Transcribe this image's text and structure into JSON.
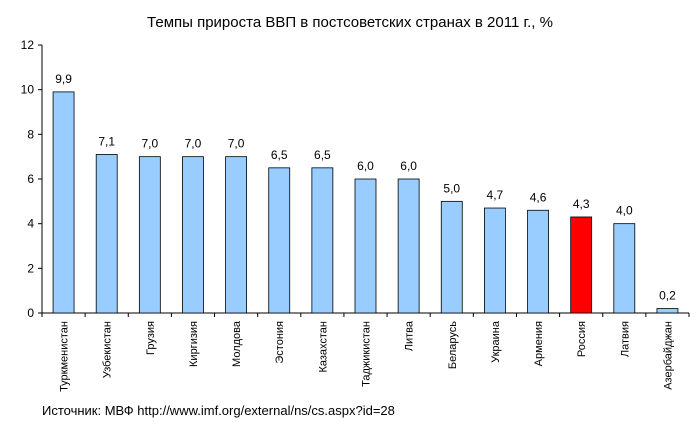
{
  "chart_data": {
    "type": "bar",
    "title": "Темпы прироста ВВП в постсоветских странах в 2011 г., %",
    "categories": [
      "Туркменистан",
      "Узбекистан",
      "Грузия",
      "Киргизия",
      "Молдова",
      "Эстония",
      "Казахстан",
      "Таджикистан",
      "Литва",
      "Беларусь",
      "Украина",
      "Армения",
      "Россия",
      "Латвия",
      "Азербайджан"
    ],
    "values": [
      9.9,
      7.1,
      7.0,
      7.0,
      7.0,
      6.5,
      6.5,
      6.0,
      6.0,
      5.0,
      4.7,
      4.6,
      4.3,
      4.0,
      0.2
    ],
    "value_labels": [
      "9,9",
      "7,1",
      "7,0",
      "7,0",
      "7,0",
      "6,5",
      "6,5",
      "6,0",
      "6,0",
      "5,0",
      "4,7",
      "4,6",
      "4,3",
      "4,0",
      "0,2"
    ],
    "ylim": [
      0,
      12
    ],
    "yticks": [
      0,
      2,
      4,
      6,
      8,
      10,
      12
    ],
    "grid": false,
    "legend": "none",
    "bar_color": "#99ccff",
    "highlight_color": "#ff0000",
    "highlight_index": 12,
    "xlabel": "",
    "ylabel": ""
  },
  "source": "Источник: МВФ http://www.imf.org/external/ns/cs.aspx?id=28"
}
